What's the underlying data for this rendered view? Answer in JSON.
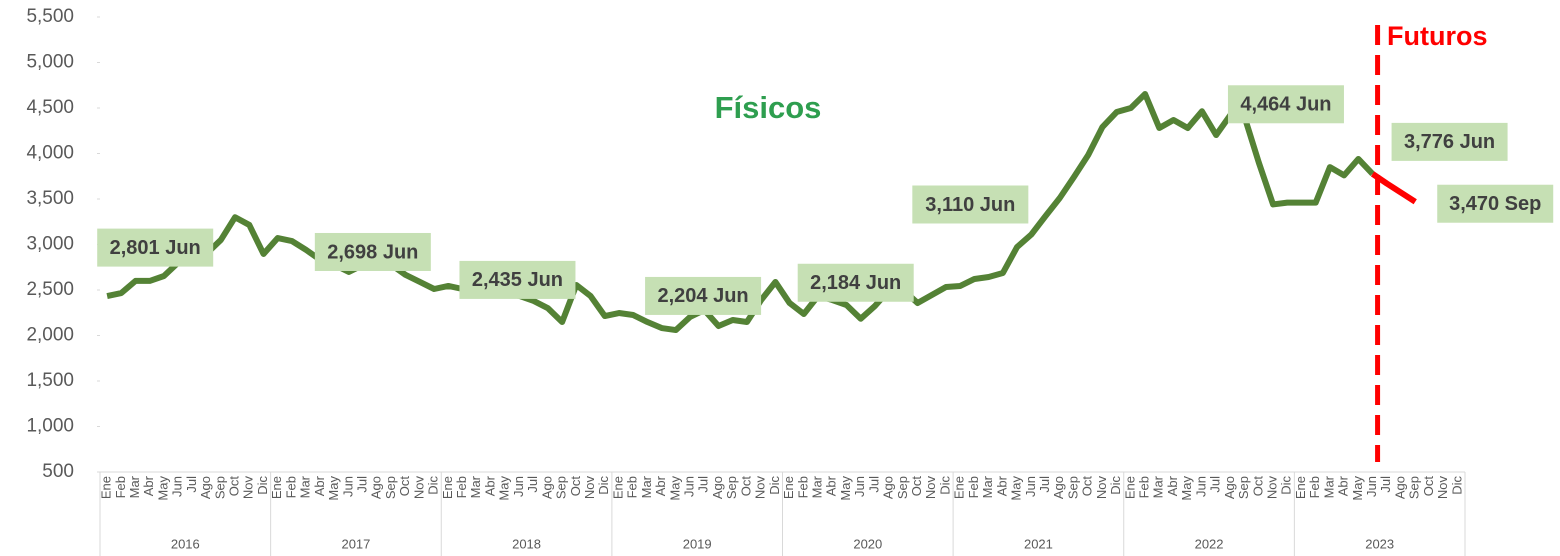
{
  "chart_data": {
    "type": "line",
    "categories": [
      "Ene",
      "Feb",
      "Mar",
      "Abr",
      "May",
      "Jun",
      "Jul",
      "Ago",
      "Sep",
      "Oct",
      "Nov",
      "Dic",
      "Ene",
      "Feb",
      "Mar",
      "Abr",
      "May",
      "Jun",
      "Jul",
      "Ago",
      "Sep",
      "Oct",
      "Nov",
      "Dic",
      "Ene",
      "Feb",
      "Mar",
      "Abr",
      "May",
      "Jun",
      "Jul",
      "Ago",
      "Sep",
      "Oct",
      "Nov",
      "Dic",
      "Ene",
      "Feb",
      "Mar",
      "Abr",
      "May",
      "Jun",
      "Jul",
      "Ago",
      "Sep",
      "Oct",
      "Nov",
      "Dic",
      "Ene",
      "Feb",
      "Mar",
      "Abr",
      "May",
      "Jun",
      "Jul",
      "Ago",
      "Sep",
      "Oct",
      "Nov",
      "Dic",
      "Ene",
      "Feb",
      "Mar",
      "Abr",
      "May",
      "Jun",
      "Jul",
      "Ago",
      "Sep",
      "Oct",
      "Nov",
      "Dic",
      "Ene",
      "Feb",
      "Mar",
      "Abr",
      "May",
      "Jun",
      "Jul",
      "Ago",
      "Sep",
      "Oct",
      "Nov",
      "Dic",
      "Ene",
      "Feb",
      "Mar",
      "Abr",
      "May",
      "Jun",
      "Jul",
      "Ago",
      "Sep",
      "Oct",
      "Nov",
      "Dic"
    ],
    "years": [
      "2016",
      "2017",
      "2018",
      "2019",
      "2020",
      "2021",
      "2022",
      "2023"
    ],
    "series": [
      {
        "name": "Físicos",
        "color": "#548235",
        "values": [
          2434,
          2467,
          2600,
          2600,
          2654,
          2801,
          2850,
          2900,
          3050,
          3300,
          3215,
          2896,
          3071,
          3038,
          2940,
          2830,
          2775,
          2698,
          2775,
          2797,
          2775,
          2665,
          2588,
          2511,
          2544,
          2511,
          2500,
          2480,
          2460,
          2435,
          2380,
          2300,
          2148,
          2555,
          2434,
          2214,
          2247,
          2225,
          2148,
          2082,
          2060,
          2204,
          2280,
          2104,
          2170,
          2148,
          2390,
          2588,
          2357,
          2236,
          2434,
          2390,
          2335,
          2184,
          2324,
          2500,
          2500,
          2357,
          2445,
          2533,
          2544,
          2621,
          2643,
          2687,
          2973,
          3110,
          3313,
          3511,
          3742,
          3984,
          4291,
          4456,
          4500,
          4654,
          4280,
          4368,
          4280,
          4464,
          4203,
          4423,
          4400,
          3900,
          3440,
          3460,
          3460,
          3460,
          3850,
          3760,
          3940,
          3776,
          null,
          null,
          null,
          null,
          null,
          null
        ],
        "value_labels": [
          null,
          null,
          null,
          null,
          null,
          "2,801 Jun",
          null,
          null,
          null,
          null,
          null,
          null,
          null,
          null,
          null,
          null,
          null,
          "2,698 Jun",
          null,
          null,
          null,
          null,
          null,
          null,
          null,
          null,
          null,
          null,
          null,
          "2,435 Jun",
          null,
          null,
          null,
          null,
          null,
          null,
          null,
          null,
          null,
          null,
          null,
          "2,204 Jun",
          null,
          null,
          null,
          null,
          null,
          null,
          null,
          null,
          null,
          null,
          null,
          "2,184 Jun",
          null,
          null,
          null,
          null,
          null,
          null,
          null,
          null,
          null,
          null,
          null,
          "3,110 Jun",
          null,
          null,
          null,
          null,
          null,
          null,
          null,
          null,
          null,
          null,
          null,
          "4,464 Jun",
          null,
          null,
          null,
          null,
          null,
          null,
          null,
          null,
          null,
          null,
          null,
          "3,776 Jun",
          null,
          null,
          null,
          null,
          null,
          null
        ]
      },
      {
        "name": "Futuros",
        "color": "#ff0000",
        "values": [
          null,
          null,
          null,
          null,
          null,
          null,
          null,
          null,
          null,
          null,
          null,
          null,
          null,
          null,
          null,
          null,
          null,
          null,
          null,
          null,
          null,
          null,
          null,
          null,
          null,
          null,
          null,
          null,
          null,
          null,
          null,
          null,
          null,
          null,
          null,
          null,
          null,
          null,
          null,
          null,
          null,
          null,
          null,
          null,
          null,
          null,
          null,
          null,
          null,
          null,
          null,
          null,
          null,
          null,
          null,
          null,
          null,
          null,
          null,
          null,
          null,
          null,
          null,
          null,
          null,
          null,
          null,
          null,
          null,
          null,
          null,
          null,
          null,
          null,
          null,
          null,
          null,
          null,
          null,
          null,
          null,
          null,
          null,
          null,
          null,
          null,
          null,
          null,
          null,
          3776,
          3670,
          3570,
          3470,
          null,
          null,
          null
        ],
        "value_labels": [
          null,
          null,
          null,
          null,
          null,
          null,
          null,
          null,
          null,
          null,
          null,
          null,
          null,
          null,
          null,
          null,
          null,
          null,
          null,
          null,
          null,
          null,
          null,
          null,
          null,
          null,
          null,
          null,
          null,
          null,
          null,
          null,
          null,
          null,
          null,
          null,
          null,
          null,
          null,
          null,
          null,
          null,
          null,
          null,
          null,
          null,
          null,
          null,
          null,
          null,
          null,
          null,
          null,
          null,
          null,
          null,
          null,
          null,
          null,
          null,
          null,
          null,
          null,
          null,
          null,
          null,
          null,
          null,
          null,
          null,
          null,
          null,
          null,
          null,
          null,
          null,
          null,
          null,
          null,
          null,
          null,
          null,
          null,
          null,
          null,
          null,
          null,
          null,
          null,
          null,
          null,
          null,
          "3,470 Sep",
          null,
          null,
          null
        ]
      }
    ],
    "ylim": [
      500,
      5500
    ],
    "yticks": [
      500,
      {
        "value": 1000,
        "label": "1,000"
      },
      {
        "value": 1500,
        "label": "1,500"
      },
      {
        "value": 2000,
        "label": "2,000"
      },
      {
        "value": 2500,
        "label": "2,500"
      },
      {
        "value": 3000,
        "label": "3,000"
      },
      {
        "value": 3500,
        "label": "3,500"
      },
      {
        "value": 4000,
        "label": "4,000"
      },
      {
        "value": 4500,
        "label": "4,500"
      },
      {
        "value": 5000,
        "label": "5,000"
      },
      {
        "value": 5500,
        "label": "5,500"
      }
    ],
    "grid": false
  }
}
